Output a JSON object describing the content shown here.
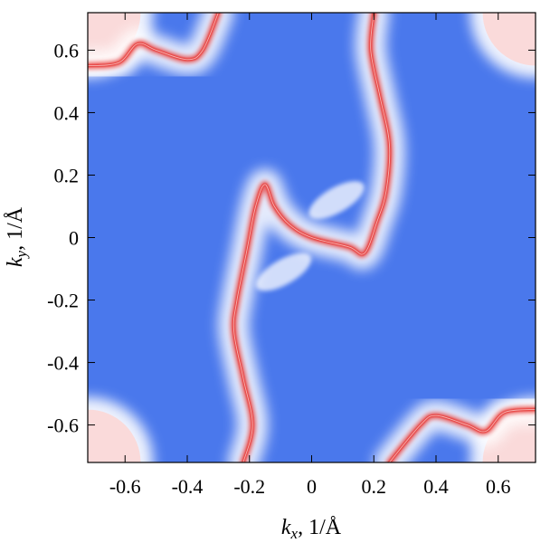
{
  "chart_data": {
    "type": "heatmap",
    "title": "",
    "xlabel": {
      "var": "k",
      "sub": "x",
      "unit": ", 1/Å"
    },
    "ylabel": {
      "var": "k",
      "sub": "y",
      "unit": ", 1/Å"
    },
    "xlim": [
      -0.72,
      0.72
    ],
    "ylim": [
      -0.72,
      0.72
    ],
    "x_ticks": [
      -0.6,
      -0.4,
      -0.2,
      0,
      0.2,
      0.4,
      0.6
    ],
    "y_ticks": [
      -0.6,
      -0.4,
      -0.2,
      0,
      0.2,
      0.4,
      0.6
    ],
    "x_tick_labels": [
      "-0.6",
      "-0.4",
      "-0.2",
      "0",
      "0.2",
      "0.4",
      "0.6"
    ],
    "y_tick_labels": [
      "-0.6",
      "-0.4",
      "-0.2",
      "0",
      "0.2",
      "0.4",
      "0.6"
    ],
    "grid": false,
    "colors": {
      "background": "#4a78ec",
      "weak": "#ffffff",
      "strong": "#e8403e",
      "pocket": "#fadada"
    },
    "features": [
      {
        "name": "corner-pocket-top-left",
        "kind": "pocket",
        "center": [
          -0.72,
          0.72
        ],
        "radius": 0.17
      },
      {
        "name": "corner-pocket-top-right",
        "kind": "pocket",
        "center": [
          0.72,
          0.72
        ],
        "radius": 0.17
      },
      {
        "name": "corner-pocket-bottom-left",
        "kind": "pocket",
        "center": [
          -0.72,
          -0.72
        ],
        "radius": 0.17
      },
      {
        "name": "corner-pocket-bottom-right",
        "kind": "pocket",
        "center": [
          0.72,
          -0.72
        ],
        "radius": 0.17
      },
      {
        "name": "upper-left-branch",
        "kind": "contour",
        "points": [
          [
            -0.72,
            0.55
          ],
          [
            -0.62,
            0.56
          ],
          [
            -0.56,
            0.62
          ],
          [
            -0.5,
            0.6
          ],
          [
            -0.4,
            0.57
          ],
          [
            -0.35,
            0.6
          ],
          [
            -0.3,
            0.72
          ]
        ]
      },
      {
        "name": "lower-right-branch",
        "kind": "contour",
        "points": [
          [
            0.72,
            -0.55
          ],
          [
            0.62,
            -0.56
          ],
          [
            0.56,
            -0.62
          ],
          [
            0.5,
            -0.6
          ],
          [
            0.4,
            -0.57
          ],
          [
            0.35,
            -0.6
          ],
          [
            0.25,
            -0.72
          ]
        ]
      },
      {
        "name": "central-s-contour",
        "kind": "contour",
        "points": [
          [
            0.2,
            0.72
          ],
          [
            0.19,
            0.6
          ],
          [
            0.22,
            0.45
          ],
          [
            0.25,
            0.3
          ],
          [
            0.24,
            0.15
          ],
          [
            0.21,
            0.05
          ],
          [
            0.17,
            -0.05
          ],
          [
            0.12,
            -0.03
          ],
          [
            0.0,
            0.0
          ],
          [
            -0.07,
            0.04
          ],
          [
            -0.12,
            0.1
          ],
          [
            -0.15,
            0.17
          ],
          [
            -0.18,
            0.1
          ],
          [
            -0.21,
            -0.05
          ],
          [
            -0.24,
            -0.2
          ],
          [
            -0.25,
            -0.3
          ],
          [
            -0.22,
            -0.45
          ],
          [
            -0.19,
            -0.6
          ],
          [
            -0.22,
            -0.72
          ]
        ]
      },
      {
        "name": "central-bowtie-upper-right",
        "kind": "weak",
        "center": [
          0.08,
          0.12
        ],
        "rx": 0.1,
        "ry": 0.04,
        "angle": 30
      },
      {
        "name": "central-bowtie-lower-left",
        "kind": "weak",
        "center": [
          -0.09,
          -0.11
        ],
        "rx": 0.1,
        "ry": 0.04,
        "angle": 30
      }
    ]
  }
}
